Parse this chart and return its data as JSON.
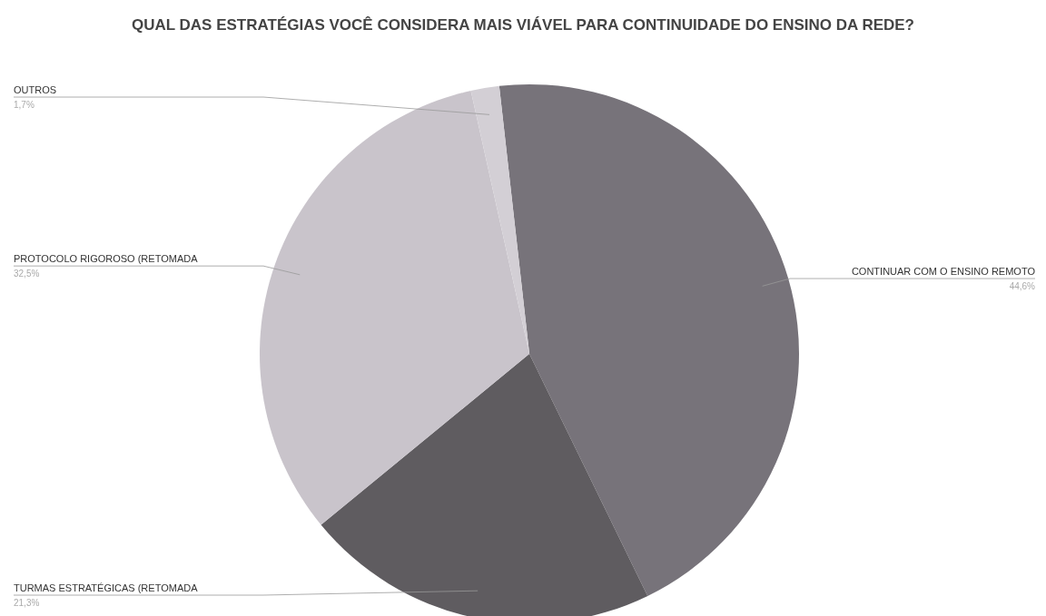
{
  "chart_data": {
    "type": "pie",
    "title": "QUAL DAS ESTRATÉGIAS VOCÊ CONSIDERA MAIS VIÁVEL PARA CONTINUIDADE DO ENSINO DA REDE?",
    "categories": [
      "CONTINUAR COM O ENSINO REMOTO",
      "TURMAS ESTRATÉGICAS (RETOMADA",
      "PROTOCOLO RIGOROSO (RETOMADA",
      "OUTROS"
    ],
    "values": [
      44.6,
      21.3,
      32.5,
      1.7
    ],
    "value_labels": [
      "44,6%",
      "21,3%",
      "32,5%",
      "1,7%"
    ],
    "colors": [
      "#77737a",
      "#5f5c60",
      "#c9c4cb",
      "#d3cfd5"
    ]
  }
}
